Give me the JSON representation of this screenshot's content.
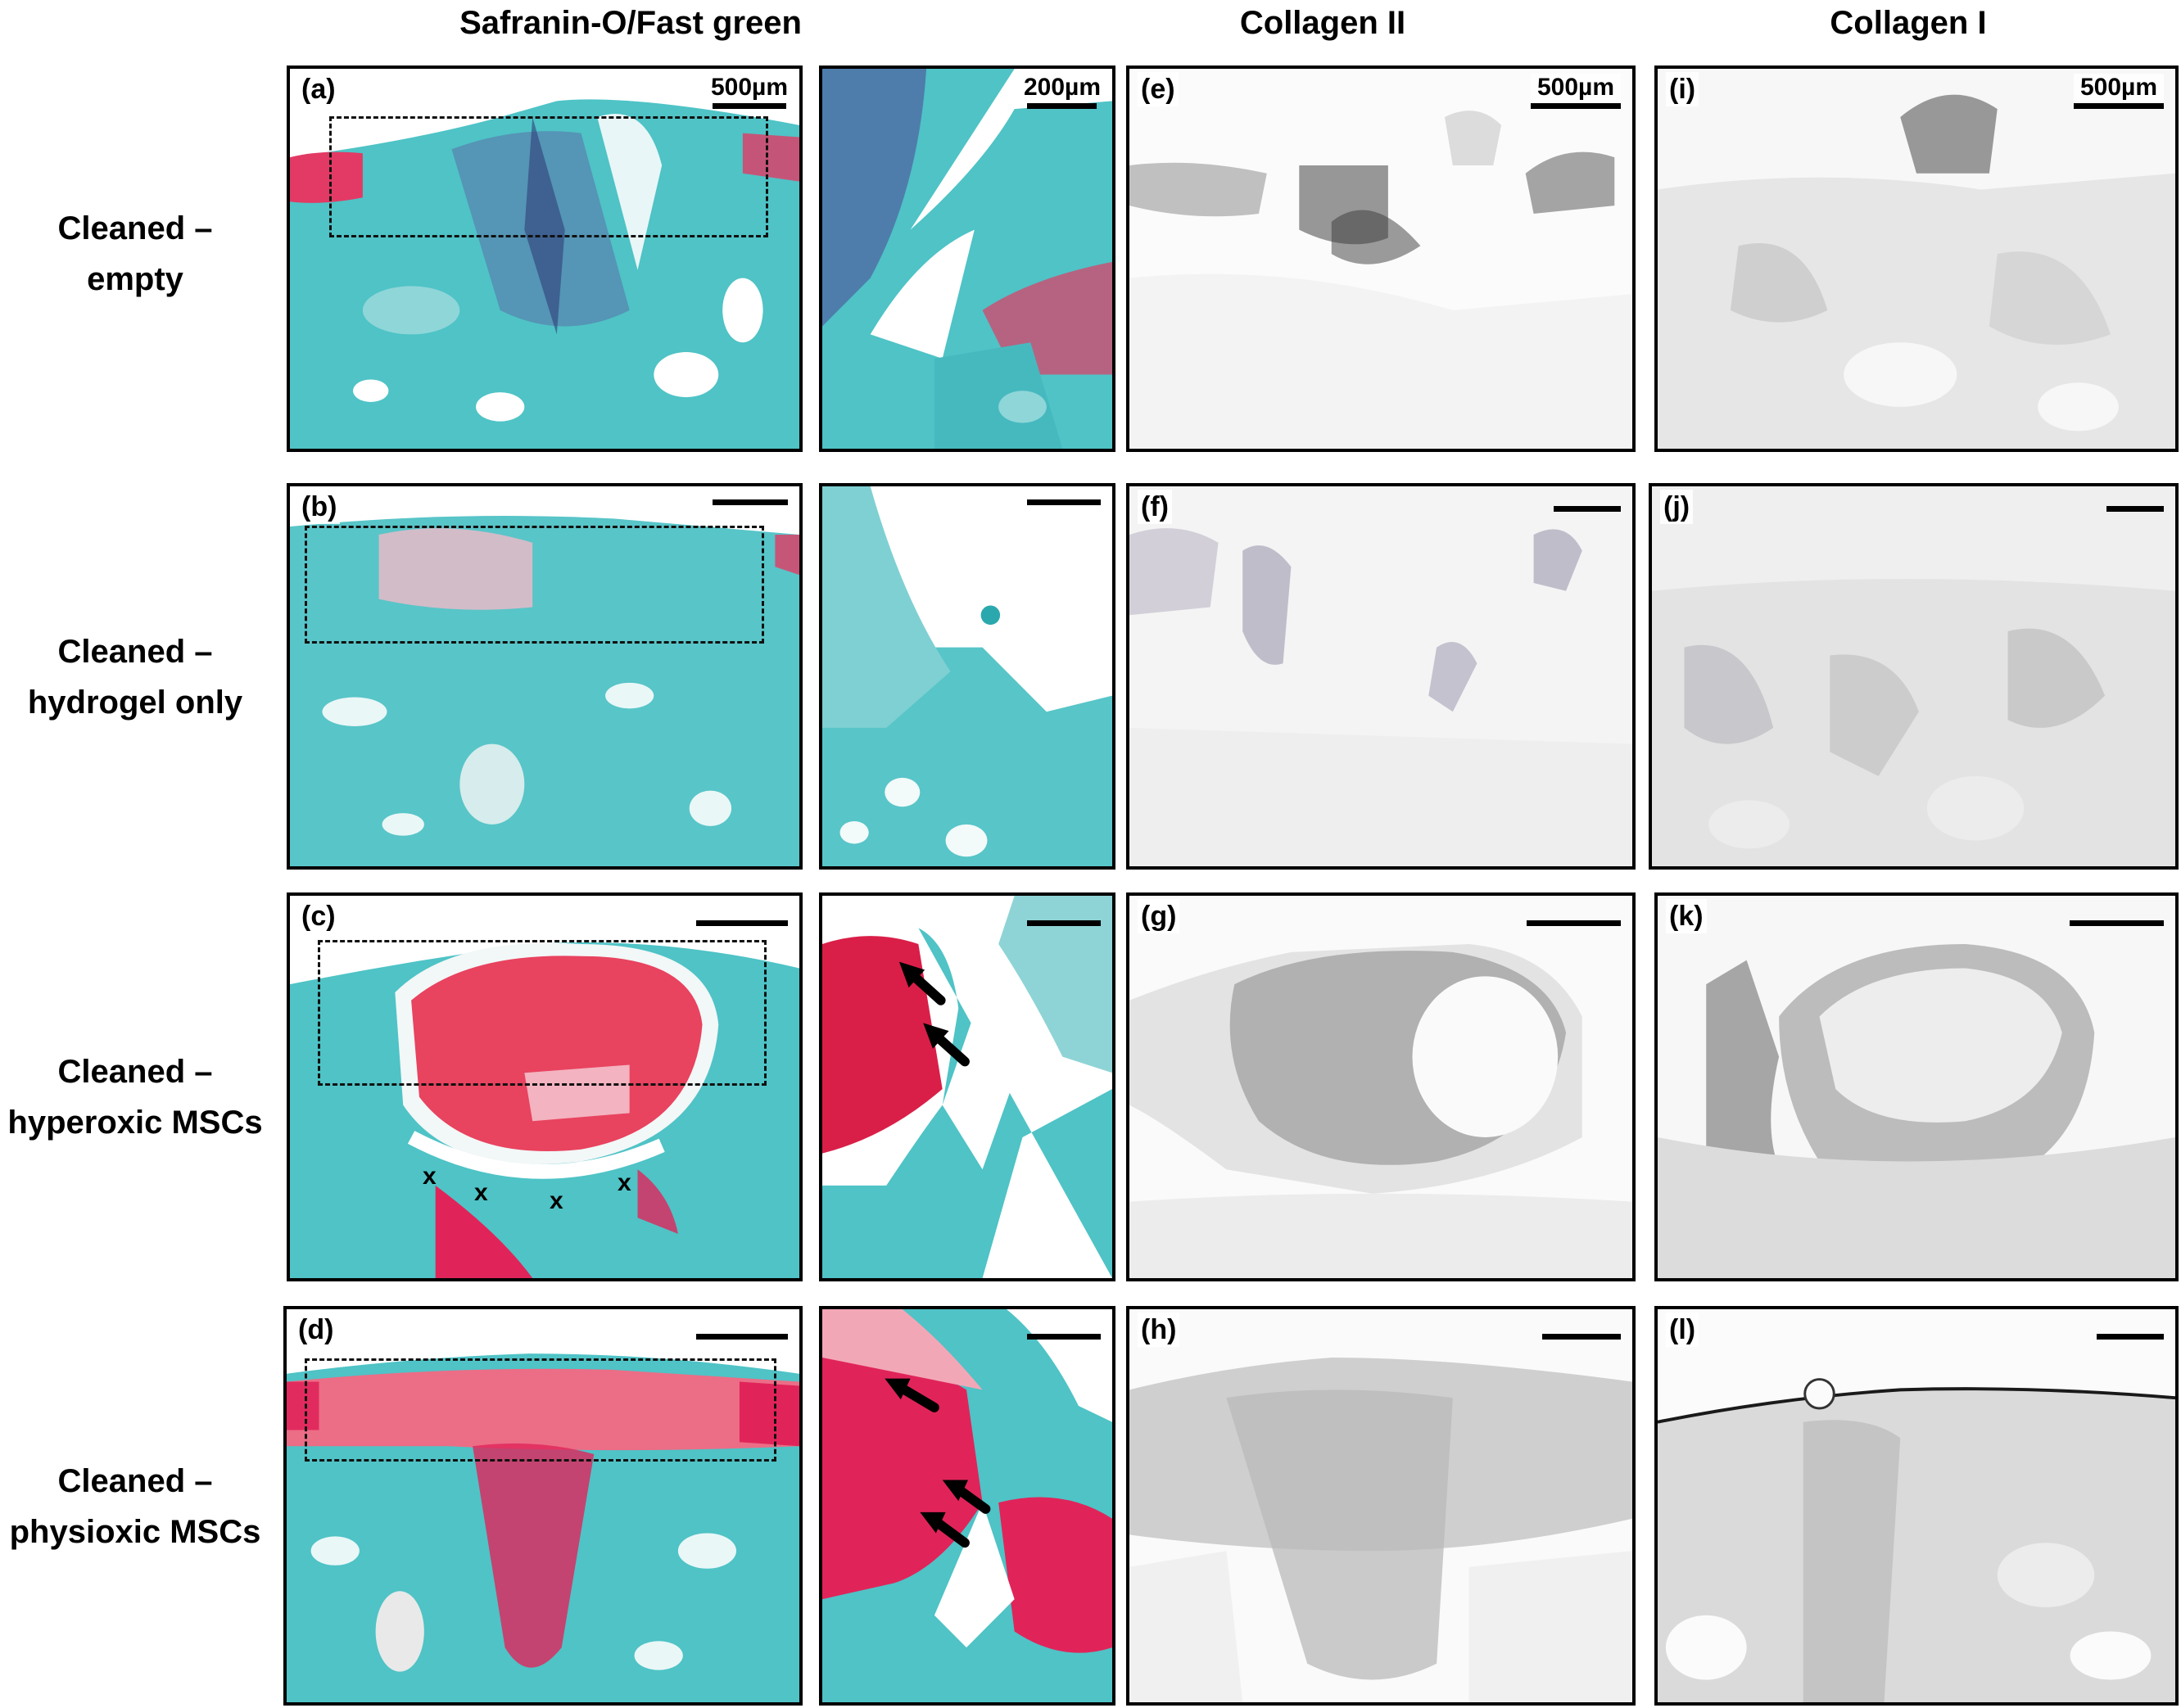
{
  "column_headers": [
    "Safranin-O/Fast  green",
    "Collagen II",
    "Collagen I"
  ],
  "rows": [
    {
      "label_line1": "Cleaned –",
      "label_line2": "empty",
      "letters": [
        "(a)",
        "(e)",
        "(i)"
      ]
    },
    {
      "label_line1": "Cleaned –",
      "label_line2": "hydrogel only",
      "letters": [
        "(b)",
        "(f)",
        "(j)"
      ]
    },
    {
      "label_line1": "Cleaned –",
      "label_line2": "hyperoxic MSCs",
      "letters": [
        "(c)",
        "(g)",
        "(k)"
      ]
    },
    {
      "label_line1": "Cleaned –",
      "label_line2": "physioxic MSCs",
      "letters": [
        "(d)",
        "(h)",
        "(l)"
      ]
    }
  ],
  "scale_labels": {
    "overview": "500µm",
    "zoom": "200µm",
    "collagen2": "500µm",
    "collagen1": "500µm"
  },
  "annotations": {
    "x_marker": "x",
    "x_marker_2": "x",
    "x_marker_3": "x",
    "x_marker_4": "x"
  },
  "colors": {
    "fast_green": "#3fc1c4",
    "safranin_red": "#e0245a",
    "ihc_dark": "#3a3a3a",
    "ihc_light": "#ededed"
  }
}
